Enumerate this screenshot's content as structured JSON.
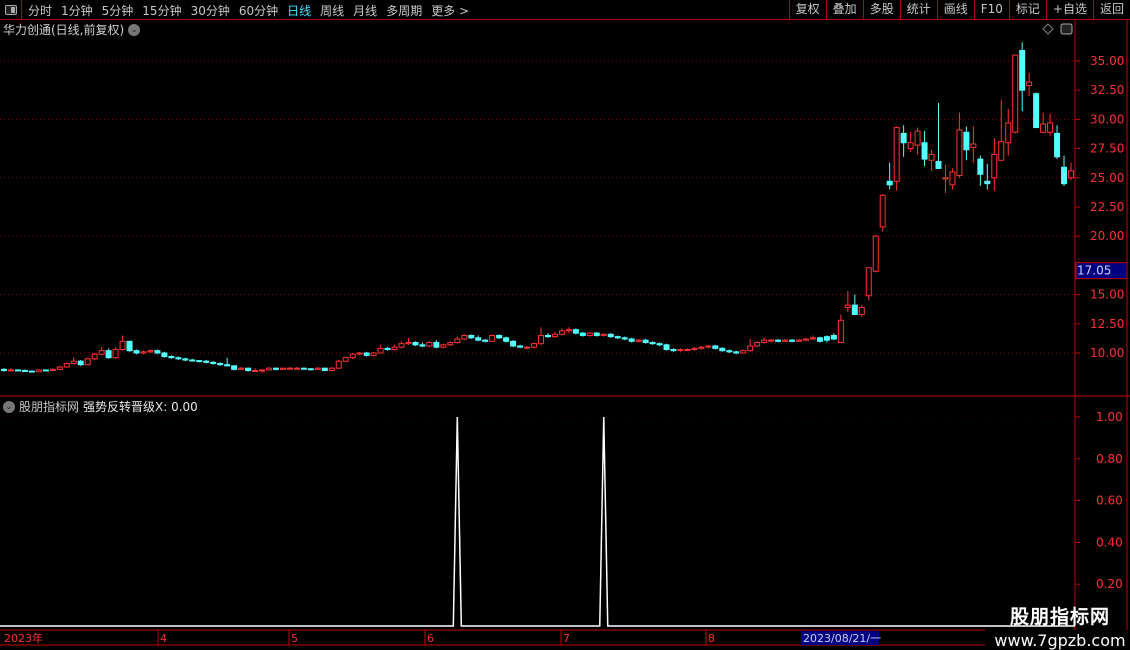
{
  "toolbar": {
    "periods": [
      "分时",
      "1分钟",
      "5分钟",
      "15分钟",
      "30分钟",
      "60分钟",
      "日线",
      "周线",
      "月线",
      "多周期",
      "更多 >"
    ],
    "active_period": "日线",
    "buttons": [
      "复权",
      "叠加",
      "多股",
      "统计",
      "画线",
      "F10",
      "标记",
      "+自选",
      "返回"
    ]
  },
  "chart": {
    "title": "华力创通(日线,前复权)",
    "price_ticks": [
      "35.00",
      "32.50",
      "30.00",
      "27.50",
      "25.00",
      "22.50",
      "20.00",
      "15.00",
      "12.50",
      "10.00"
    ],
    "current_price_label": "17.05",
    "colors": {
      "up": "#ff3232",
      "down": "#54ffff",
      "grid": "#8a0000",
      "axis": "#c00000",
      "highlight_bg": "#000080"
    }
  },
  "indicator": {
    "source": "股朋指标网",
    "name": "强势反转晋级X: 0.00",
    "ticks": [
      "1.00",
      "0.80",
      "0.60",
      "0.40",
      "0.20"
    ]
  },
  "date_axis": {
    "labels": [
      "2023年",
      "4",
      "5",
      "6",
      "7",
      "8"
    ],
    "cursor_date": "2023/08/21/一"
  },
  "watermark": {
    "line1": "股朋指标网",
    "line2": "www.7gpzb.com"
  },
  "chart_data": {
    "type": "candlestick",
    "ohlc_format": [
      "open",
      "high",
      "low",
      "close"
    ],
    "ylim": [
      8,
      37
    ],
    "candles": [
      [
        8.6,
        8.7,
        8.4,
        8.5
      ],
      [
        8.5,
        8.7,
        8.5,
        8.55
      ],
      [
        8.55,
        8.6,
        8.45,
        8.5
      ],
      [
        8.5,
        8.6,
        8.4,
        8.45
      ],
      [
        8.45,
        8.5,
        8.35,
        8.4
      ],
      [
        8.4,
        8.6,
        8.4,
        8.55
      ],
      [
        8.55,
        8.6,
        8.45,
        8.5
      ],
      [
        8.5,
        8.7,
        8.45,
        8.6
      ],
      [
        8.6,
        8.9,
        8.55,
        8.8
      ],
      [
        8.8,
        9.2,
        8.75,
        9.1
      ],
      [
        9.1,
        9.6,
        9.0,
        9.3
      ],
      [
        9.3,
        9.4,
        8.9,
        9.0
      ],
      [
        9.0,
        9.6,
        8.95,
        9.5
      ],
      [
        9.5,
        10.0,
        9.4,
        9.9
      ],
      [
        9.9,
        10.5,
        9.8,
        10.2
      ],
      [
        10.2,
        10.4,
        9.5,
        9.6
      ],
      [
        9.6,
        10.5,
        9.5,
        10.3
      ],
      [
        10.3,
        11.5,
        10.2,
        11.0
      ],
      [
        11.0,
        11.0,
        10.1,
        10.2
      ],
      [
        10.2,
        10.3,
        9.9,
        10.0
      ],
      [
        10.0,
        10.2,
        9.9,
        10.1
      ],
      [
        10.1,
        10.3,
        10.0,
        10.2
      ],
      [
        10.2,
        10.3,
        9.9,
        10.0
      ],
      [
        10.0,
        10.1,
        9.6,
        9.7
      ],
      [
        9.7,
        9.8,
        9.5,
        9.6
      ],
      [
        9.6,
        9.7,
        9.4,
        9.5
      ],
      [
        9.5,
        9.6,
        9.3,
        9.4
      ],
      [
        9.4,
        9.5,
        9.3,
        9.35
      ],
      [
        9.35,
        9.4,
        9.2,
        9.3
      ],
      [
        9.3,
        9.4,
        9.1,
        9.2
      ],
      [
        9.2,
        9.3,
        9.0,
        9.1
      ],
      [
        9.1,
        9.2,
        8.9,
        9.0
      ],
      [
        9.0,
        9.6,
        8.85,
        8.9
      ],
      [
        8.9,
        8.95,
        8.5,
        8.6
      ],
      [
        8.6,
        8.8,
        8.55,
        8.7
      ],
      [
        8.7,
        8.75,
        8.4,
        8.5
      ],
      [
        8.5,
        8.7,
        8.4,
        8.5
      ],
      [
        8.5,
        8.6,
        8.3,
        8.55
      ],
      [
        8.55,
        8.8,
        8.5,
        8.7
      ],
      [
        8.7,
        8.75,
        8.5,
        8.6
      ],
      [
        8.6,
        8.75,
        8.55,
        8.7
      ],
      [
        8.7,
        8.8,
        8.6,
        8.7
      ],
      [
        8.7,
        8.8,
        8.6,
        8.7
      ],
      [
        8.7,
        8.75,
        8.55,
        8.65
      ],
      [
        8.65,
        8.7,
        8.5,
        8.6
      ],
      [
        8.6,
        8.8,
        8.55,
        8.7
      ],
      [
        8.7,
        8.75,
        8.45,
        8.5
      ],
      [
        8.5,
        8.8,
        8.45,
        8.7
      ],
      [
        8.7,
        9.4,
        8.65,
        9.3
      ],
      [
        9.3,
        9.7,
        9.2,
        9.6
      ],
      [
        9.6,
        10.0,
        9.5,
        9.9
      ],
      [
        9.9,
        10.1,
        9.8,
        10.0
      ],
      [
        10.0,
        10.1,
        9.7,
        9.8
      ],
      [
        9.8,
        10.1,
        9.7,
        10.0
      ],
      [
        10.0,
        10.7,
        9.95,
        10.4
      ],
      [
        10.4,
        10.5,
        10.2,
        10.3
      ],
      [
        10.3,
        10.7,
        10.2,
        10.5
      ],
      [
        10.5,
        11.0,
        10.4,
        10.8
      ],
      [
        10.8,
        11.3,
        10.7,
        10.9
      ],
      [
        10.9,
        11.0,
        10.6,
        10.7
      ],
      [
        10.7,
        10.9,
        10.5,
        10.6
      ],
      [
        10.6,
        11.0,
        10.5,
        10.9
      ],
      [
        10.9,
        11.1,
        10.4,
        10.5
      ],
      [
        10.5,
        10.8,
        10.4,
        10.7
      ],
      [
        10.7,
        11.0,
        10.6,
        10.9
      ],
      [
        10.9,
        11.4,
        10.8,
        11.2
      ],
      [
        11.2,
        11.6,
        11.1,
        11.5
      ],
      [
        11.5,
        11.6,
        11.2,
        11.3
      ],
      [
        11.3,
        11.5,
        11.0,
        11.1
      ],
      [
        11.1,
        11.2,
        10.9,
        11.0
      ],
      [
        11.0,
        11.6,
        10.95,
        11.5
      ],
      [
        11.5,
        11.6,
        11.2,
        11.3
      ],
      [
        11.3,
        11.4,
        10.9,
        11.0
      ],
      [
        11.0,
        11.1,
        10.5,
        10.6
      ],
      [
        10.6,
        10.7,
        10.4,
        10.5
      ],
      [
        10.5,
        10.6,
        10.3,
        10.5
      ],
      [
        10.5,
        10.9,
        10.4,
        10.8
      ],
      [
        10.8,
        12.2,
        10.7,
        11.5
      ],
      [
        11.5,
        11.7,
        11.3,
        11.4
      ],
      [
        11.4,
        11.8,
        11.3,
        11.6
      ],
      [
        11.6,
        12.1,
        11.5,
        11.9
      ],
      [
        11.9,
        12.2,
        11.7,
        12.0
      ],
      [
        12.0,
        12.1,
        11.6,
        11.7
      ],
      [
        11.7,
        11.8,
        11.4,
        11.5
      ],
      [
        11.5,
        11.8,
        11.4,
        11.7
      ],
      [
        11.7,
        11.8,
        11.4,
        11.5
      ],
      [
        11.5,
        11.7,
        11.4,
        11.6
      ],
      [
        11.6,
        11.7,
        11.3,
        11.4
      ],
      [
        11.4,
        11.5,
        11.2,
        11.3
      ],
      [
        11.3,
        11.4,
        11.1,
        11.2
      ],
      [
        11.2,
        11.3,
        10.9,
        11.0
      ],
      [
        11.0,
        11.2,
        10.9,
        11.1
      ],
      [
        11.1,
        11.2,
        10.8,
        10.9
      ],
      [
        10.9,
        11.0,
        10.7,
        10.8
      ],
      [
        10.8,
        10.9,
        10.6,
        10.7
      ],
      [
        10.7,
        10.8,
        10.2,
        10.3
      ],
      [
        10.3,
        10.4,
        10.1,
        10.2
      ],
      [
        10.2,
        10.4,
        10.1,
        10.3
      ],
      [
        10.3,
        10.4,
        10.2,
        10.3
      ],
      [
        10.3,
        10.5,
        10.2,
        10.4
      ],
      [
        10.4,
        10.6,
        10.3,
        10.5
      ],
      [
        10.5,
        10.7,
        10.4,
        10.6
      ],
      [
        10.6,
        10.7,
        10.3,
        10.4
      ],
      [
        10.4,
        10.5,
        10.1,
        10.2
      ],
      [
        10.2,
        10.3,
        10.0,
        10.1
      ],
      [
        10.1,
        10.2,
        9.9,
        10.0
      ],
      [
        10.0,
        10.3,
        9.95,
        10.2
      ],
      [
        10.2,
        11.2,
        10.1,
        10.6
      ],
      [
        10.6,
        11.0,
        10.5,
        10.9
      ],
      [
        10.9,
        11.3,
        10.8,
        11.1
      ],
      [
        11.1,
        11.2,
        10.9,
        11.1
      ],
      [
        11.1,
        11.2,
        10.9,
        11.0
      ],
      [
        11.0,
        11.2,
        10.95,
        11.1
      ],
      [
        11.1,
        11.2,
        10.9,
        11.0
      ],
      [
        11.0,
        11.2,
        10.95,
        11.1
      ],
      [
        11.1,
        11.3,
        11.0,
        11.2
      ],
      [
        11.2,
        11.5,
        11.1,
        11.3
      ],
      [
        11.3,
        11.4,
        10.9,
        11.0
      ],
      [
        11.4,
        11.5,
        10.9,
        11.1
      ],
      [
        11.5,
        11.7,
        11.1,
        11.2
      ],
      [
        10.9,
        13.3,
        10.9,
        12.8
      ],
      [
        13.9,
        15.3,
        13.5,
        14.1
      ],
      [
        14.1,
        15.0,
        13.3,
        13.3
      ],
      [
        13.3,
        14.1,
        13.1,
        13.9
      ],
      [
        14.9,
        17.3,
        14.5,
        17.3
      ],
      [
        17.0,
        20.1,
        16.9,
        20.0
      ],
      [
        20.8,
        23.6,
        20.4,
        23.5
      ],
      [
        24.7,
        26.3,
        24.0,
        24.4
      ],
      [
        24.7,
        29.4,
        23.9,
        29.3
      ],
      [
        28.8,
        29.5,
        26.8,
        28.0
      ],
      [
        27.5,
        28.9,
        27.2,
        28.0
      ],
      [
        27.8,
        29.3,
        27.0,
        29.0
      ],
      [
        28.0,
        29.0,
        26.0,
        26.6
      ],
      [
        26.5,
        27.4,
        25.6,
        27.0
      ],
      [
        26.4,
        31.4,
        25.8,
        25.8
      ],
      [
        24.9,
        26.1,
        23.7,
        25.0
      ],
      [
        24.4,
        25.8,
        24.0,
        25.5
      ],
      [
        25.2,
        30.6,
        25.0,
        29.1
      ],
      [
        28.9,
        29.4,
        26.5,
        27.4
      ],
      [
        27.6,
        29.4,
        26.3,
        27.9
      ],
      [
        26.6,
        26.9,
        24.3,
        25.3
      ],
      [
        24.7,
        26.2,
        24.0,
        24.5
      ],
      [
        25.0,
        28.4,
        23.9,
        27.0
      ],
      [
        26.5,
        31.7,
        26.5,
        28.1
      ],
      [
        28.0,
        30.9,
        26.9,
        29.7
      ],
      [
        28.9,
        35.5,
        28.8,
        35.5
      ],
      [
        35.9,
        36.6,
        30.7,
        32.5
      ],
      [
        32.9,
        34.0,
        32.0,
        33.2
      ],
      [
        32.2,
        32.3,
        29.3,
        29.3
      ],
      [
        28.9,
        30.6,
        28.8,
        29.6
      ],
      [
        28.9,
        30.5,
        28.6,
        29.7
      ],
      [
        28.8,
        29.5,
        26.6,
        26.8
      ],
      [
        25.9,
        26.9,
        24.3,
        24.5
      ],
      [
        25.0,
        26.3,
        24.8,
        25.6
      ]
    ],
    "indicator_signals": [
      {
        "index": 65,
        "value": 1
      },
      {
        "index": 86,
        "value": 1
      }
    ],
    "indicator_ylim": [
      0,
      1
    ]
  }
}
